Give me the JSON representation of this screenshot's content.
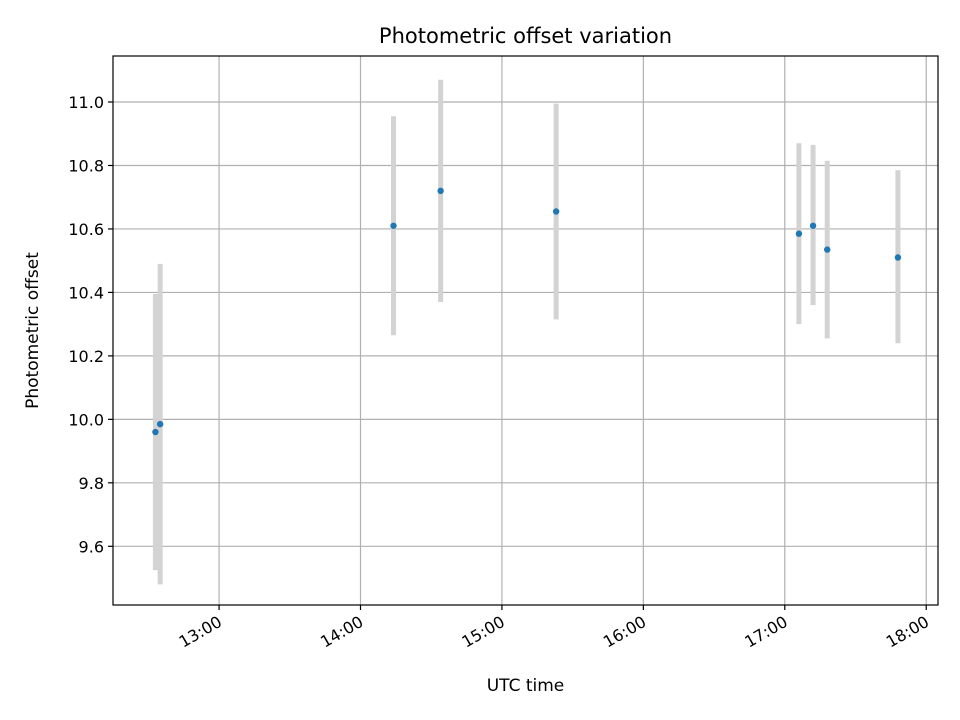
{
  "chart_data": {
    "type": "scatter",
    "title": "Photometric offset variation",
    "xlabel": "UTC time",
    "ylabel": "Photometric offset",
    "xlim": [
      "12:15",
      "18:05"
    ],
    "ylim": [
      9.415,
      11.145
    ],
    "grid": true,
    "x_ticks": [
      "13:00",
      "14:00",
      "15:00",
      "16:00",
      "17:00",
      "18:00"
    ],
    "y_ticks": [
      9.6,
      9.8,
      10.0,
      10.2,
      10.4,
      10.6,
      10.8,
      11.0
    ],
    "y_tick_labels": [
      "9.6",
      "9.8",
      "10.0",
      "10.2",
      "10.4",
      "10.6",
      "10.8",
      "11.0"
    ],
    "series": [
      {
        "marker_color": "#1f77b4",
        "errorbar_color": "#d3d3d3",
        "points": [
          {
            "time": "12:33",
            "value": 9.96,
            "low": 9.525,
            "high": 10.395
          },
          {
            "time": "12:35",
            "value": 9.985,
            "low": 9.48,
            "high": 10.49
          },
          {
            "time": "14:14",
            "value": 10.61,
            "low": 10.265,
            "high": 10.955
          },
          {
            "time": "14:34",
            "value": 10.72,
            "low": 10.37,
            "high": 11.07
          },
          {
            "time": "15:23",
            "value": 10.655,
            "low": 10.315,
            "high": 10.995
          },
          {
            "time": "17:06",
            "value": 10.585,
            "low": 10.3,
            "high": 10.87
          },
          {
            "time": "17:12",
            "value": 10.61,
            "low": 10.36,
            "high": 10.865
          },
          {
            "time": "17:18",
            "value": 10.535,
            "low": 10.255,
            "high": 10.815
          },
          {
            "time": "17:48",
            "value": 10.51,
            "low": 10.24,
            "high": 10.785
          }
        ]
      }
    ]
  }
}
